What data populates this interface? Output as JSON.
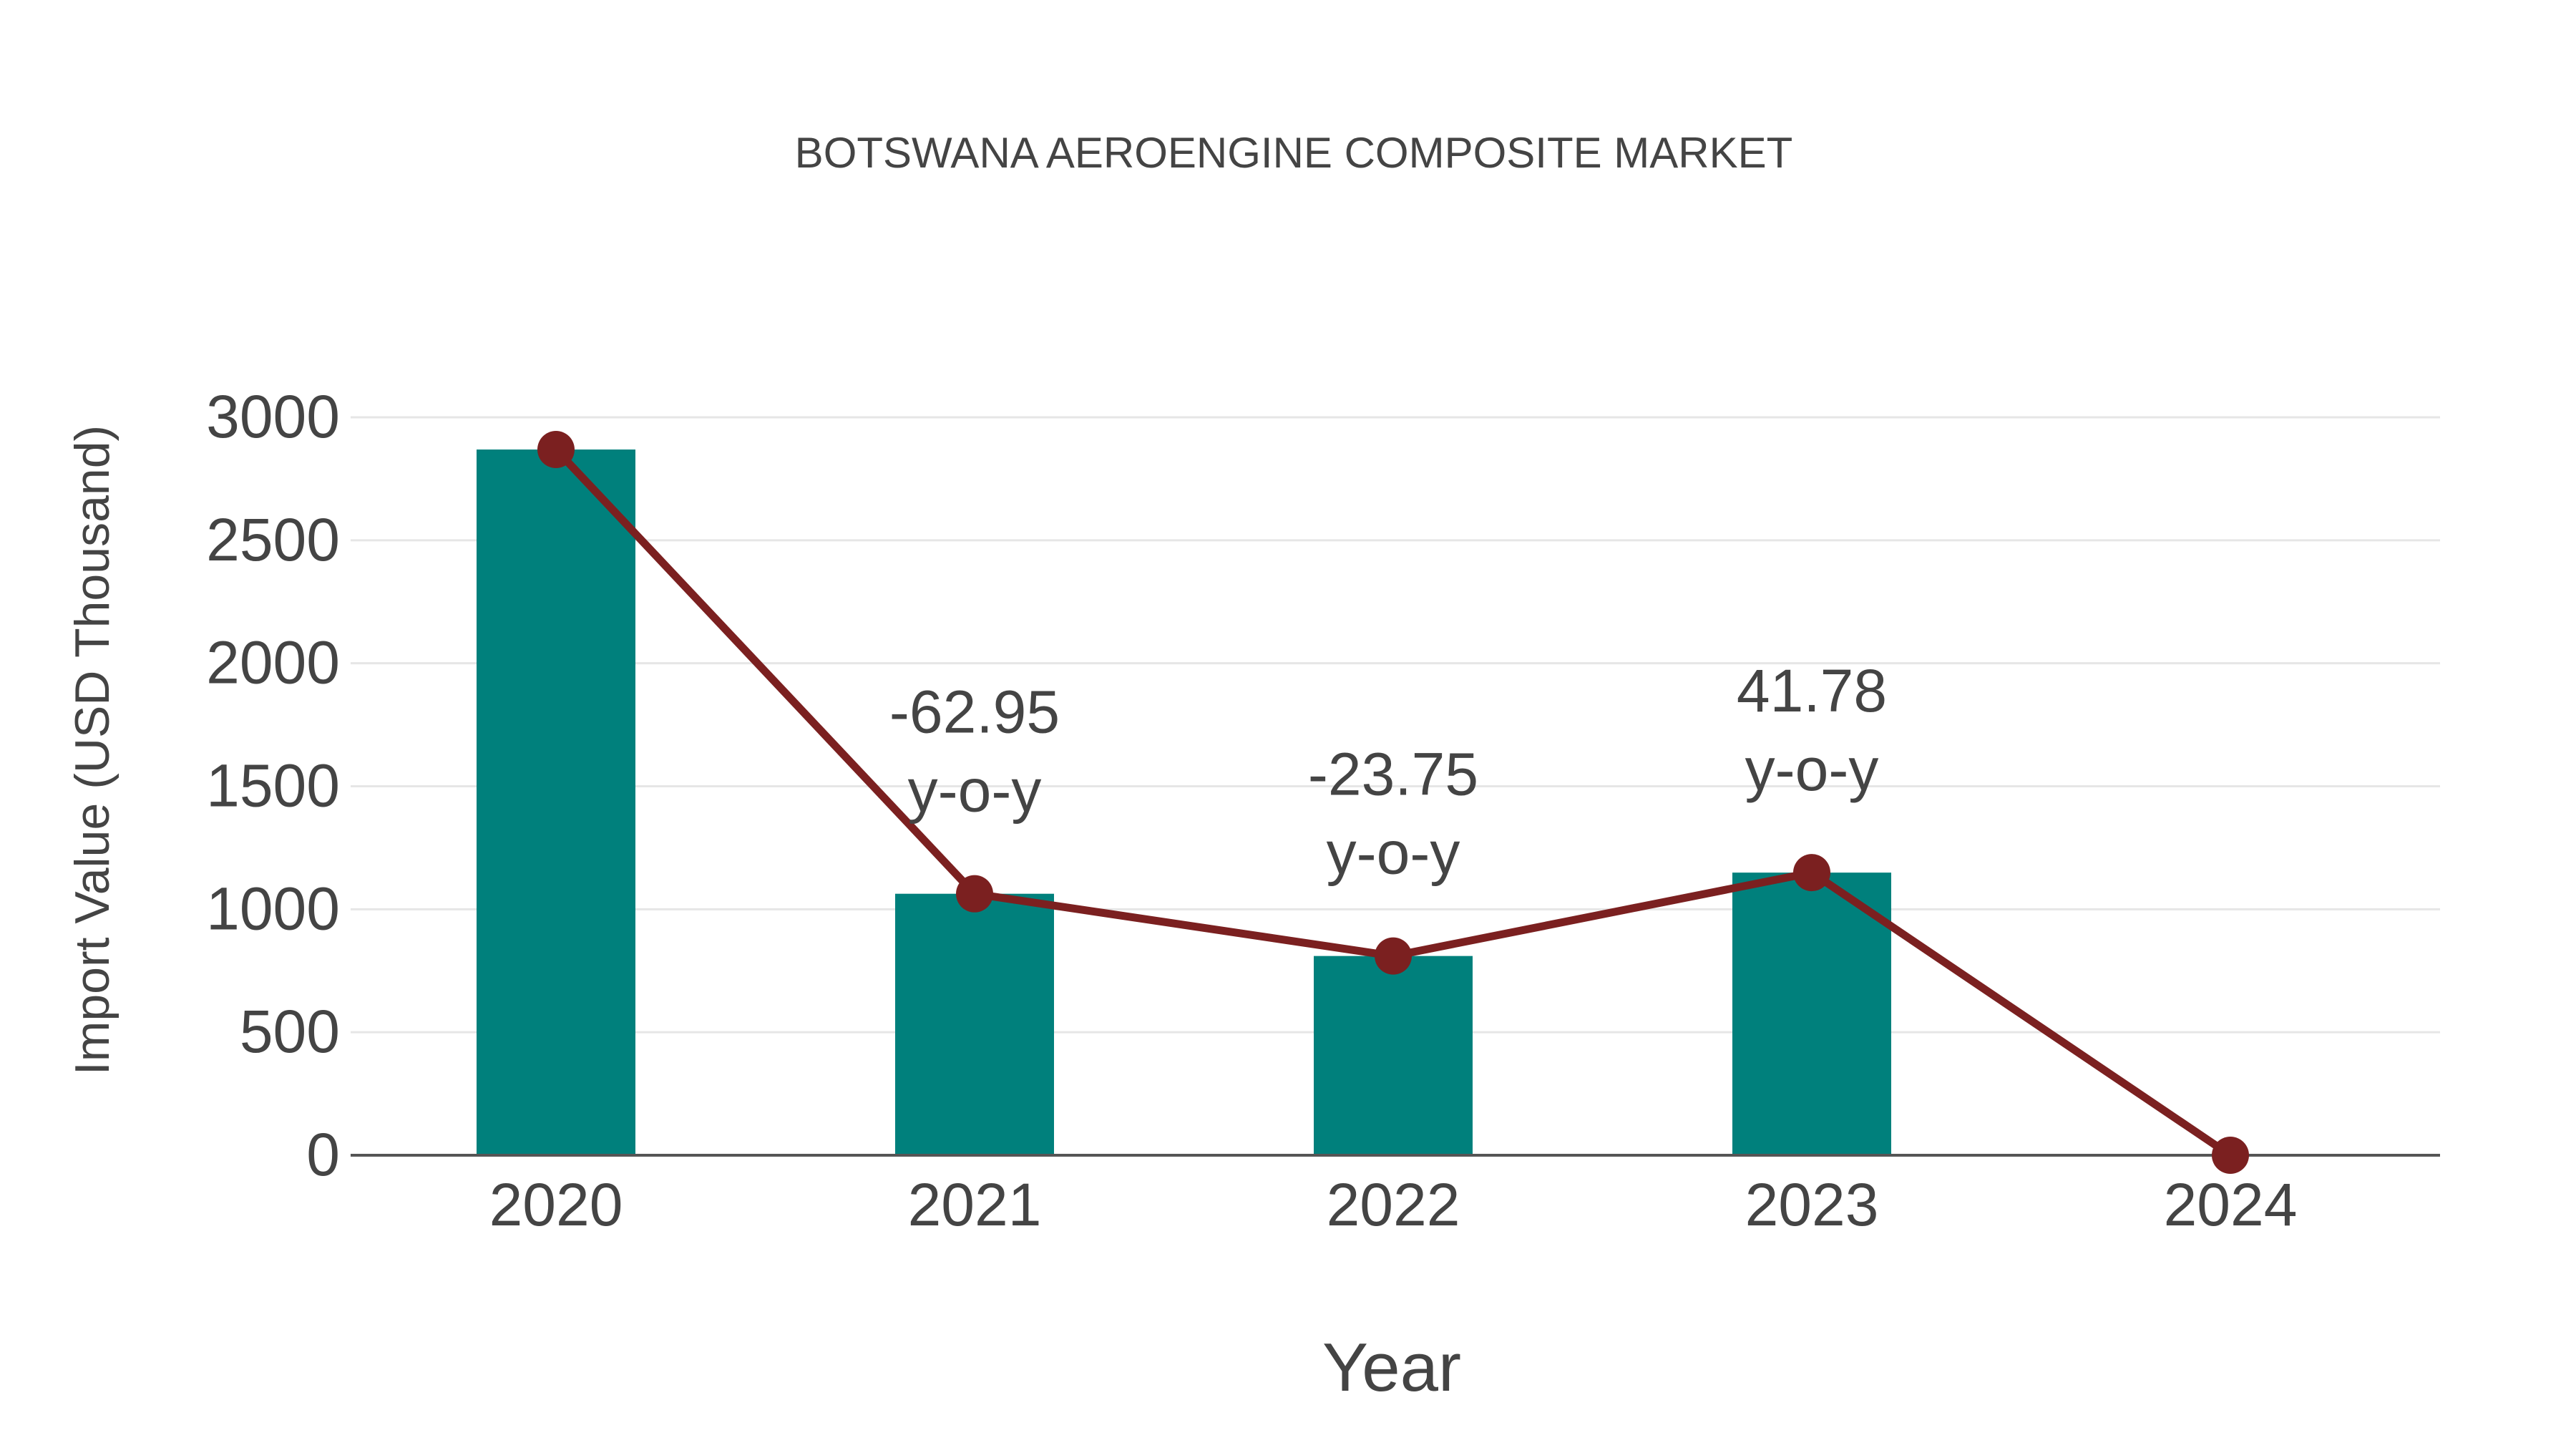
{
  "chart_data": {
    "type": "bar+line",
    "title": "BOTSWANA AEROENGINE COMPOSITE MARKET",
    "xlabel": "Year",
    "ylabel": "Import Value (USD Thousand)",
    "categories": [
      "2020",
      "2021",
      "2022",
      "2023",
      "2024"
    ],
    "series": [
      {
        "name": "Import Value (bars)",
        "kind": "bar",
        "color": "#00807C",
        "values": [
          2869,
          1063,
          810,
          1149,
          0
        ]
      },
      {
        "name": "Import Value (line)",
        "kind": "line",
        "color": "#7B2020",
        "values": [
          2869,
          1063,
          810,
          1149,
          0
        ]
      }
    ],
    "annotations": [
      {
        "category": "2021",
        "value": "-62.95",
        "suffix": "y-o-y"
      },
      {
        "category": "2022",
        "value": "-23.75",
        "suffix": "y-o-y"
      },
      {
        "category": "2023",
        "value": "41.78",
        "suffix": "y-o-y"
      }
    ],
    "ylim": [
      0,
      3000
    ],
    "yticks": [
      0,
      500,
      1000,
      1500,
      2000,
      2500,
      3000
    ],
    "grid": true,
    "legend": null
  },
  "colors": {
    "bar": "#00807C",
    "line": "#7B2020",
    "text": "#444444",
    "grid": "#E6E6E6",
    "axis": "#555555"
  }
}
